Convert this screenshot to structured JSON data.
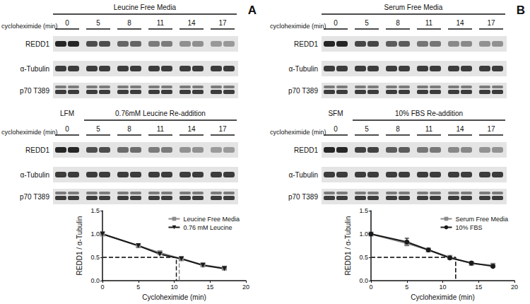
{
  "panel_labels": [
    "A",
    "B"
  ],
  "blots": [
    {
      "gels": [
        {
          "header": "Leucine Free Media",
          "control": null,
          "row_label": "cycloheximide (min)",
          "times": [
            0,
            5,
            8,
            11,
            14,
            17
          ],
          "rows": [
            "REDD1",
            "α-Tubulin",
            "p70 T389"
          ]
        },
        {
          "header": "0.76mM Leucine Re-addition",
          "control": "LFM",
          "row_label": "cycloheximide (min)",
          "times": [
            0,
            5,
            8,
            11,
            14,
            17
          ],
          "rows": [
            "REDD1",
            "α-Tubulin",
            "p70 T389"
          ]
        }
      ]
    },
    {
      "gels": [
        {
          "header": "Serum Free Media",
          "control": null,
          "row_label": "cycloheximide (min)",
          "times": [
            0,
            5,
            8,
            11,
            14,
            17
          ],
          "rows": [
            "REDD1",
            "α-Tubulin",
            "p70 T389"
          ]
        },
        {
          "header": "10% FBS Re-addition",
          "control": "SFM",
          "row_label": "cycloheximide (min)",
          "times": [
            0,
            5,
            8,
            11,
            14,
            17
          ],
          "rows": [
            "REDD1",
            "α-Tubulin",
            "p70 T389"
          ]
        }
      ]
    }
  ],
  "chart_data": [
    {
      "type": "line",
      "x_label": "Cycloheximide (min)",
      "y_label": "REDD1 / α-Tubulin",
      "x": [
        0,
        5,
        8,
        11,
        14,
        17
      ],
      "xlim": [
        0,
        20
      ],
      "xticks": [
        0,
        5,
        10,
        15,
        20
      ],
      "ylim": [
        0,
        1.5
      ],
      "yticks": [
        {
          "value": 0,
          "label": "0.0"
        },
        0.5,
        {
          "value": 1,
          "label": "1.0"
        },
        1.5
      ],
      "grid": false,
      "legend": "upper right",
      "series": [
        {
          "name": "Leucine Free Media",
          "color": "#8c8c8c",
          "marker": "square",
          "line_style": "solid",
          "values": [
            1.0,
            0.75,
            0.6,
            0.47,
            0.34,
            0.27
          ],
          "half_life": {
            "x": 10.7,
            "y": 0.5
          }
        },
        {
          "name": "0.76 mM Leucine",
          "color": "#1a1a1a",
          "marker": "triangle_down",
          "line_style": "solid",
          "values": [
            1.0,
            0.75,
            0.57,
            0.47,
            0.33,
            0.26
          ],
          "half_life": {
            "x": 10.3,
            "y": 0.5
          }
        }
      ]
    },
    {
      "type": "line",
      "x_label": "Cycloheximide (min)",
      "y_label": "REDD1 / α-Tubulin",
      "x": [
        0,
        5,
        8,
        11,
        14,
        17
      ],
      "xlim": [
        0,
        20
      ],
      "xticks": [
        0,
        5,
        10,
        15,
        20
      ],
      "ylim": [
        0,
        1.5
      ],
      "yticks": [
        {
          "value": 0,
          "label": "0.0"
        },
        0.5,
        {
          "value": 1,
          "label": "1.0"
        },
        1.5
      ],
      "grid": false,
      "legend": "upper right",
      "series": [
        {
          "name": "Serum Free Media",
          "color": "#8c8c8c",
          "marker": "square",
          "line_style": "solid",
          "values": [
            1.0,
            0.8,
            0.66,
            0.5,
            0.37,
            0.33
          ],
          "errors": [
            0,
            0.02,
            0.02,
            0.02,
            0.02,
            0.03
          ],
          "half_life": {
            "x": 11.8,
            "y": 0.5
          }
        },
        {
          "name": "10% FBS",
          "color": "#1a1a1a",
          "marker": "circle",
          "line_style": "solid",
          "values": [
            1.0,
            0.83,
            0.66,
            0.49,
            0.38,
            0.31
          ],
          "errors": [
            0,
            0.08,
            0.02,
            0.02,
            0.02,
            0.02
          ],
          "half_life": {
            "x": 11.8,
            "y": 0.5
          }
        }
      ]
    }
  ]
}
